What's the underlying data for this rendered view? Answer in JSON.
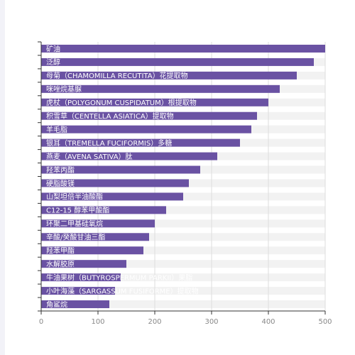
{
  "chart_data": {
    "type": "bar",
    "orientation": "horizontal",
    "categories": [
      "矿油",
      "泛醇",
      "母菊（CHAMOMILLA RECUTITA）花提取物",
      "咪唑烷基脲",
      "虎杖（POLYGONUM CUSPIDATUM）根提取物",
      "积雪草（CENTELLA ASIATICA）提取物",
      "羊毛脂",
      "银耳（TREMELLA FUCIFORMIS）多糖",
      "燕麦（AVENA SATIVA）肽",
      "羟苯丙酯",
      "硬脂酸镁",
      "山梨坦倍半油酸酯",
      "C12-15 醇苯甲酸酯",
      "环聚二甲基硅氧烷",
      "辛酸/癸酸甘油三酯",
      "羟苯甲酯",
      "水解胶原",
      "牛油果树（BUTYROSPERMUM PARKII）果脂",
      "小叶海藻（SARGASSUM FUSIFORME）提取物",
      "角鲨烷"
    ],
    "values": [
      500,
      480,
      450,
      420,
      400,
      380,
      370,
      350,
      310,
      280,
      260,
      250,
      220,
      200,
      190,
      180,
      150,
      140,
      130,
      120
    ],
    "xlim": [
      0,
      500
    ],
    "xticks": [
      0,
      100,
      200,
      300,
      400,
      500
    ],
    "grid": true,
    "title": "",
    "xlabel": "",
    "ylabel": "",
    "colors": {
      "bar": "#6a52a3",
      "band": "#f2f2f2",
      "grid": "#dddddd",
      "axis": "#333333",
      "tick_text": "#888888",
      "label_text": "#ffffff"
    }
  }
}
